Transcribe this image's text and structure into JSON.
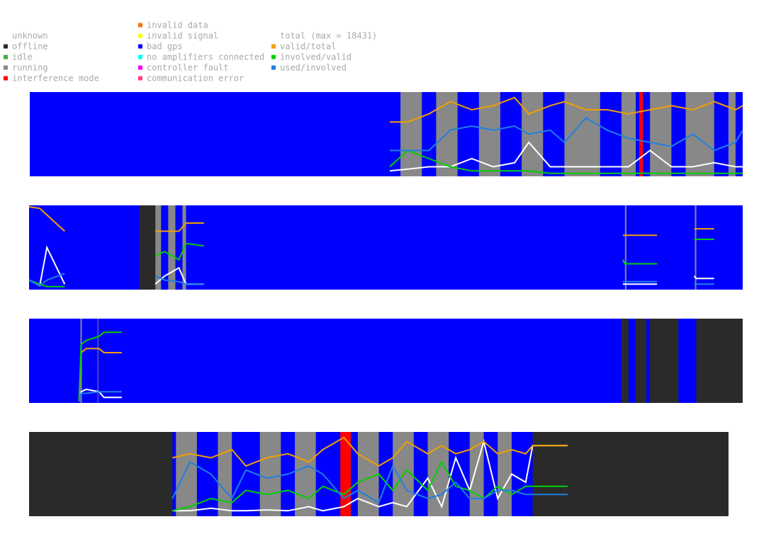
{
  "legend": {
    "states": [
      {
        "label": "unknown"
      },
      {
        "label": "offline",
        "color": "#2a2a2a"
      },
      {
        "label": "idle",
        "color": "#44aa44"
      },
      {
        "label": "running",
        "color": "#888888"
      },
      {
        "label": "interference mode",
        "color": "#ff0000"
      },
      {
        "label": "invalid data",
        "color": "#ff7000"
      },
      {
        "label": "invalid signal",
        "color": "#ffff00"
      },
      {
        "label": "bad gps",
        "color": "#0000ff"
      },
      {
        "label": "no amplifiers connected",
        "color": "#00ffff"
      },
      {
        "label": "controller fault",
        "color": "#ff00ff"
      },
      {
        "label": "communication error",
        "color": "#ff4080"
      }
    ],
    "lines": [
      {
        "label": "total (max = 18431)",
        "color": "#ffffff"
      },
      {
        "label": "valid/total",
        "color": "#f0a000"
      },
      {
        "label": "involved/valid",
        "color": "#00d000"
      },
      {
        "label": "used/involved",
        "color": "#2080e0"
      }
    ]
  },
  "strips": [
    {
      "base": 7,
      "segments": [
        {
          "state": 3,
          "from": 52,
          "to": 55
        },
        {
          "state": 3,
          "from": 57,
          "to": 60
        },
        {
          "state": 3,
          "from": 63,
          "to": 66
        },
        {
          "state": 3,
          "from": 69,
          "to": 72
        },
        {
          "state": 3,
          "from": 75,
          "to": 80
        },
        {
          "state": 3,
          "from": 83,
          "to": 85
        },
        {
          "state": 4,
          "from": 85.5,
          "to": 86
        },
        {
          "state": 3,
          "from": 87,
          "to": 90
        },
        {
          "state": 3,
          "from": 92,
          "to": 96
        },
        {
          "state": 3,
          "from": 98,
          "to": 99
        }
      ],
      "x": [
        50.5,
        53,
        56,
        59,
        62,
        65,
        68,
        70,
        73,
        75,
        78,
        81,
        84,
        87,
        90,
        93,
        96,
        99,
        100
      ],
      "series": [
        [
          0.05,
          0.07,
          0.1,
          0.1,
          0.2,
          0.1,
          0.15,
          0.4,
          0.1,
          0.1,
          0.1,
          0.1,
          0.1,
          0.3,
          0.1,
          0.1,
          0.15,
          0.1,
          0.1
        ],
        [
          0.65,
          0.65,
          0.75,
          0.9,
          0.8,
          0.85,
          0.95,
          0.75,
          0.85,
          0.9,
          0.8,
          0.8,
          0.75,
          0.8,
          0.85,
          0.8,
          0.9,
          0.8,
          0.85
        ],
        [
          0.1,
          0.3,
          0.2,
          0.1,
          0.05,
          0.05,
          0.05,
          0.05,
          0.02,
          0.02,
          0.02,
          0.02,
          0.02,
          0.02,
          0.02,
          0.02,
          0.02,
          0.02,
          0.02
        ],
        [
          0.3,
          0.3,
          0.3,
          0.55,
          0.6,
          0.55,
          0.6,
          0.5,
          0.55,
          0.4,
          0.7,
          0.55,
          0.45,
          0.4,
          0.35,
          0.5,
          0.3,
          0.4,
          0.55
        ]
      ]
    },
    {
      "base": 7,
      "segments": [
        {
          "state": 1,
          "from": 15.5,
          "to": 17.7
        },
        {
          "state": 3,
          "from": 17.7,
          "to": 18.5
        },
        {
          "state": 3,
          "from": 19.5,
          "to": 20.5
        },
        {
          "state": 3,
          "from": 21.5,
          "to": 22
        },
        {
          "state": 3,
          "from": 83.5,
          "to": 83.7
        },
        {
          "state": 3,
          "from": 93.3,
          "to": 93.5
        }
      ],
      "x": [
        0,
        1.5,
        2.5,
        5,
        10,
        17.7,
        19,
        21,
        22,
        24.5,
        50,
        83.2,
        83.5,
        88,
        90,
        93.2,
        93.5,
        96
      ],
      "series": [
        [
          0.1,
          0.03,
          0.5,
          0.05,
          null,
          0.05,
          0.15,
          0.25,
          0.05,
          0.05,
          null,
          0.05,
          0.05,
          0.05,
          null,
          0.15,
          0.12,
          0.12
        ],
        [
          1,
          0.98,
          0.9,
          0.7,
          null,
          0.7,
          0.7,
          0.7,
          0.8,
          0.8,
          null,
          0.65,
          0.65,
          0.65,
          null,
          0.73,
          0.73,
          0.73
        ],
        [
          0.1,
          0.05,
          0.02,
          0.02,
          null,
          0.4,
          0.45,
          0.35,
          0.55,
          0.52,
          null,
          0.35,
          0.3,
          0.3,
          null,
          0.6,
          0.6,
          0.6
        ],
        [
          0.1,
          0.03,
          0.1,
          0.18,
          null,
          0.15,
          0.1,
          0.08,
          0.05,
          0.05,
          null,
          0.08,
          0.08,
          0.08,
          null,
          0.05,
          0.05,
          0.05
        ]
      ]
    },
    {
      "base": 7,
      "segments": [
        {
          "state": 3,
          "from": 7.2,
          "to": 7.4
        },
        {
          "state": 3,
          "from": 9.6,
          "to": 9.7
        },
        {
          "state": 1,
          "from": 83,
          "to": 84
        },
        {
          "state": 1,
          "from": 85,
          "to": 86.5
        },
        {
          "state": 1,
          "from": 87,
          "to": 91
        },
        {
          "state": 1,
          "from": 93.5,
          "to": 100
        }
      ],
      "x": [
        7,
        7.3,
        8,
        9.8,
        10.5,
        13
      ],
      "series": [
        [
          0,
          0.12,
          0.15,
          0.12,
          0.05,
          0.05
        ],
        [
          0,
          0.6,
          0.65,
          0.65,
          0.6,
          0.6
        ],
        [
          0,
          0.7,
          0.75,
          0.8,
          0.85,
          0.85
        ],
        [
          0,
          0.1,
          0.1,
          0.12,
          0.12,
          0.12
        ]
      ]
    },
    {
      "base": 1,
      "segments": [
        {
          "state": 7,
          "from": 20.5,
          "to": 72
        },
        {
          "state": 3,
          "from": 21,
          "to": 24
        },
        {
          "state": 3,
          "from": 27,
          "to": 29
        },
        {
          "state": 3,
          "from": 33,
          "to": 36
        },
        {
          "state": 3,
          "from": 38,
          "to": 41
        },
        {
          "state": 4,
          "from": 44.5,
          "to": 46
        },
        {
          "state": 3,
          "from": 47,
          "to": 50
        },
        {
          "state": 3,
          "from": 52,
          "to": 55
        },
        {
          "state": 3,
          "from": 57,
          "to": 60
        },
        {
          "state": 3,
          "from": 63,
          "to": 65
        },
        {
          "state": 3,
          "from": 67,
          "to": 69
        }
      ],
      "x": [
        20.5,
        23,
        26,
        29,
        31,
        34,
        37,
        40,
        42,
        45,
        47,
        50,
        52,
        54,
        57,
        59,
        61,
        63,
        65,
        67,
        69,
        71,
        72,
        77
      ],
      "series": [
        [
          0.05,
          0.05,
          0.08,
          0.05,
          0.05,
          0.06,
          0.05,
          0.1,
          0.05,
          0.1,
          0.2,
          0.1,
          0.15,
          0.1,
          0.45,
          0.1,
          0.7,
          0.3,
          0.9,
          0.2,
          0.5,
          0.4,
          0.85,
          0.85
        ],
        [
          0.7,
          0.75,
          0.7,
          0.8,
          0.6,
          0.7,
          0.75,
          0.65,
          0.8,
          0.95,
          0.75,
          0.6,
          0.7,
          0.9,
          0.75,
          0.85,
          0.75,
          0.8,
          0.9,
          0.75,
          0.8,
          0.75,
          0.85,
          0.85
        ],
        [
          0.05,
          0.1,
          0.2,
          0.15,
          0.3,
          0.25,
          0.3,
          0.2,
          0.35,
          0.25,
          0.4,
          0.5,
          0.3,
          0.55,
          0.3,
          0.65,
          0.35,
          0.3,
          0.2,
          0.35,
          0.25,
          0.35,
          0.35,
          0.35
        ],
        [
          0.2,
          0.65,
          0.5,
          0.2,
          0.55,
          0.45,
          0.5,
          0.6,
          0.5,
          0.2,
          0.3,
          0.15,
          0.6,
          0.3,
          0.2,
          0.25,
          0.4,
          0.2,
          0.2,
          0.3,
          0.3,
          0.25,
          0.25,
          0.25
        ]
      ]
    }
  ]
}
